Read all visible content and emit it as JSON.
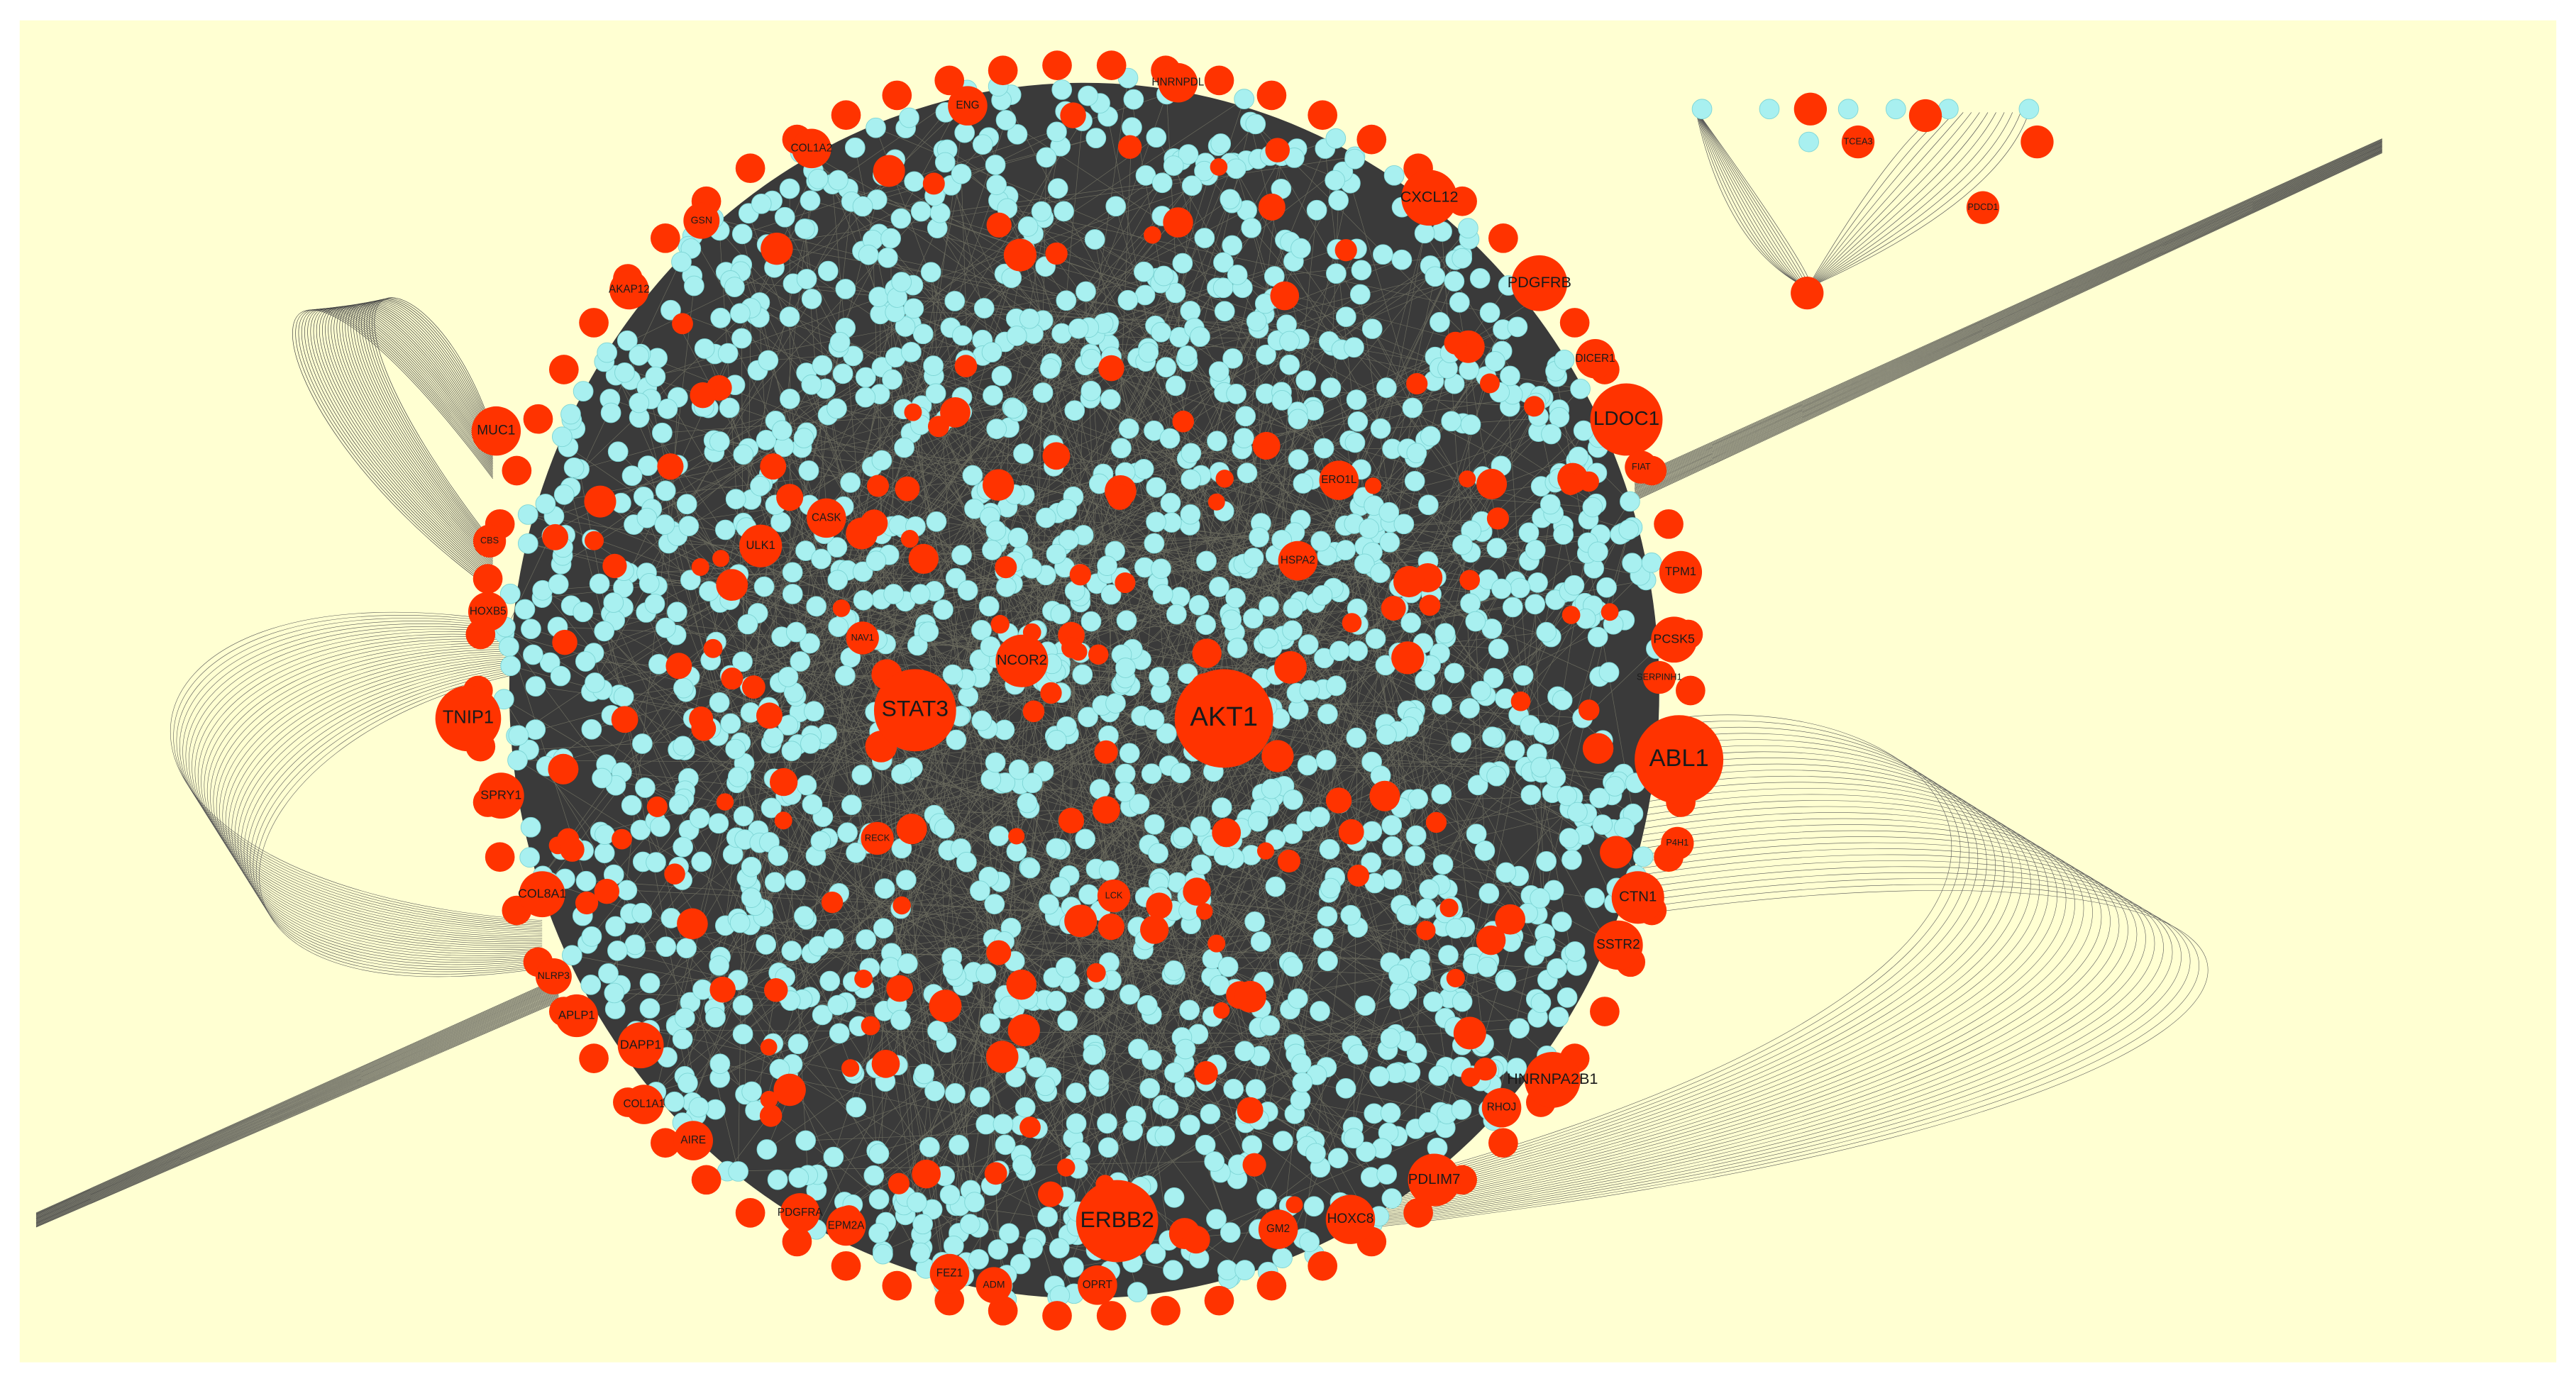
{
  "nodes": [
    {
      "label": "AKT1"
    },
    {
      "label": "ABL1"
    },
    {
      "label": "STAT3"
    },
    {
      "label": "ERBB2"
    },
    {
      "label": "NCOR2"
    },
    {
      "label": "LDOC1"
    },
    {
      "label": "PDGFRB"
    },
    {
      "label": "CXCL12"
    },
    {
      "label": "TNIP1"
    },
    {
      "label": "MUC1"
    },
    {
      "label": "CTN1"
    },
    {
      "label": "SSTR2"
    },
    {
      "label": "HNRNPA2B1"
    },
    {
      "label": "PDLIM7"
    },
    {
      "label": "HOXC8"
    },
    {
      "label": "TPM1"
    },
    {
      "label": "PCSK5"
    },
    {
      "label": "SPRY1"
    },
    {
      "label": "COL8A1"
    },
    {
      "label": "APLP1"
    },
    {
      "label": "NLRP3"
    },
    {
      "label": "ULK1"
    },
    {
      "label": "DAPP1"
    },
    {
      "label": "COL1A1"
    },
    {
      "label": "AIRE"
    },
    {
      "label": "EPM2A"
    },
    {
      "label": "PDGFRA"
    },
    {
      "label": "FEZ1"
    },
    {
      "label": "ADM"
    },
    {
      "label": "OPRT"
    },
    {
      "label": "GM2"
    },
    {
      "label": "RHOJ"
    },
    {
      "label": "HOXB5"
    },
    {
      "label": "ENG"
    },
    {
      "label": "HNRNPDL"
    },
    {
      "label": "COL1A2"
    },
    {
      "label": "GSN"
    },
    {
      "label": "AKAP12"
    },
    {
      "label": "DICER1"
    },
    {
      "label": "FIAT"
    },
    {
      "label": "SERPINH1"
    },
    {
      "label": "P4H1"
    },
    {
      "label": "CBS"
    },
    {
      "label": "CASK"
    },
    {
      "label": "NAV1"
    },
    {
      "label": "ERO1L"
    },
    {
      "label": "HSPA2"
    },
    {
      "label": "RECK"
    },
    {
      "label": "LCK"
    },
    {
      "label": "PDCD1"
    },
    {
      "label": "TCEA3"
    }
  ]
}
